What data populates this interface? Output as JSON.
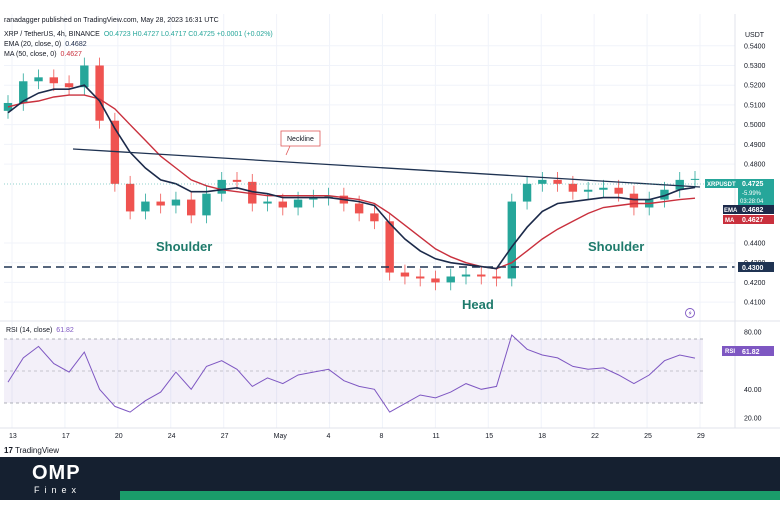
{
  "header": {
    "author": "ranadagger published on TradingView.com, May 28, 2023 16:31 UTC",
    "symbol_line": "XRP / TetherUS, 4h, BINANCE",
    "ohlc": "O0.4723 H0.4727 L0.4717 C0.4725 +0.0001 (+0.02%)",
    "ema_label": "EMA (20, close, 0)",
    "ema_value": "0.4682",
    "ma_label": "MA (50, close, 0)",
    "ma_value": "0.4627",
    "rsi_label": "RSI (14, close)",
    "rsi_value": "61.82"
  },
  "annotations": {
    "neckline": "Neckline",
    "shoulder_left": "Shoulder",
    "head": "Head",
    "shoulder_right": "Shoulder"
  },
  "price_axis": {
    "currency": "USDT",
    "ticks": [
      "0.5400",
      "0.5300",
      "0.5200",
      "0.5100",
      "0.5000",
      "0.4900",
      "0.4800",
      "0.4400",
      "0.4300",
      "0.4200",
      "0.4100"
    ],
    "badges": {
      "symbol": "XRPUSDT",
      "last_price": "0.4725",
      "change": "-5.99%",
      "countdown": "03:28:04",
      "ema_tag": "EMA",
      "ema_value": "0.4682",
      "ma_tag": "MA",
      "ma_value": "0.4627",
      "support_value": "0.4300"
    }
  },
  "rsi_axis": {
    "ticks": [
      "80.00",
      "40.00",
      "20.00"
    ],
    "badge_label": "RSI",
    "badge_value": "61.82"
  },
  "x_axis": {
    "ticks": [
      "13",
      "17",
      "20",
      "24",
      "27",
      "May",
      "4",
      "8",
      "11",
      "15",
      "18",
      "22",
      "25",
      "29"
    ]
  },
  "branding": {
    "tradingview": "TradingView",
    "logo_main": "OMP",
    "logo_sub": "Finex"
  },
  "colors": {
    "up": "#26a69a",
    "down": "#ef5350",
    "ema": "#1c2a4a",
    "ma": "#c9303d",
    "rsi": "#7e57c2",
    "neckline": "#1f3352",
    "support": "#1f3352"
  },
  "chart_data": [
    {
      "type": "line",
      "title": "XRP / TetherUS, 4h, BINANCE",
      "x": [
        "Apr 13",
        "Apr 14",
        "Apr 15",
        "Apr 16",
        "Apr 17",
        "Apr 18",
        "Apr 19",
        "Apr 20",
        "Apr 21",
        "Apr 22",
        "Apr 23",
        "Apr 24",
        "Apr 25",
        "Apr 26",
        "Apr 27",
        "Apr 28",
        "Apr 29",
        "Apr 30",
        "May 1",
        "May 2",
        "May 3",
        "May 4",
        "May 5",
        "May 6",
        "May 7",
        "May 8",
        "May 9",
        "May 10",
        "May 11",
        "May 12",
        "May 13",
        "May 14",
        "May 15",
        "May 16",
        "May 17",
        "May 18",
        "May 19",
        "May 20",
        "May 21",
        "May 22",
        "May 23",
        "May 24",
        "May 25",
        "May 26",
        "May 27",
        "May 28"
      ],
      "series": [
        {
          "name": "XRPUSDT",
          "values": [
            0.511,
            0.522,
            0.524,
            0.521,
            0.519,
            0.53,
            0.502,
            0.47,
            0.456,
            0.461,
            0.459,
            0.462,
            0.454,
            0.465,
            0.472,
            0.471,
            0.46,
            0.461,
            0.458,
            0.462,
            0.463,
            0.464,
            0.46,
            0.455,
            0.451,
            0.425,
            0.423,
            0.422,
            0.42,
            0.423,
            0.424,
            0.423,
            0.422,
            0.461,
            0.47,
            0.472,
            0.47,
            0.466,
            0.467,
            0.468,
            0.465,
            0.458,
            0.462,
            0.467,
            0.472,
            0.4725
          ]
        },
        {
          "name": "EMA",
          "values": [
            0.506,
            0.512,
            0.516,
            0.518,
            0.518,
            0.52,
            0.512,
            0.498,
            0.486,
            0.478,
            0.472,
            0.47,
            0.466,
            0.466,
            0.467,
            0.468,
            0.466,
            0.465,
            0.463,
            0.463,
            0.463,
            0.463,
            0.462,
            0.461,
            0.459,
            0.45,
            0.442,
            0.436,
            0.432,
            0.43,
            0.429,
            0.428,
            0.427,
            0.438,
            0.448,
            0.456,
            0.46,
            0.461,
            0.462,
            0.463,
            0.463,
            0.462,
            0.462,
            0.464,
            0.467,
            0.4682
          ]
        },
        {
          "name": "MA",
          "values": [
            0.509,
            0.511,
            0.512,
            0.514,
            0.515,
            0.515,
            0.513,
            0.508,
            0.5,
            0.492,
            0.484,
            0.478,
            0.472,
            0.469,
            0.467,
            0.466,
            0.465,
            0.464,
            0.464,
            0.464,
            0.464,
            0.464,
            0.463,
            0.462,
            0.46,
            0.455,
            0.449,
            0.443,
            0.437,
            0.433,
            0.43,
            0.428,
            0.427,
            0.43,
            0.436,
            0.442,
            0.447,
            0.451,
            0.455,
            0.458,
            0.459,
            0.46,
            0.46,
            0.461,
            0.462,
            0.4627
          ]
        }
      ],
      "annotation_levels": {
        "support": 0.43
      },
      "ylabel": "USDT",
      "ylim": [
        0.405,
        0.548
      ],
      "grid": true
    },
    {
      "type": "line",
      "title": "RSI (14, close)",
      "x": [
        "Apr 13",
        "Apr 14",
        "Apr 15",
        "Apr 16",
        "Apr 17",
        "Apr 18",
        "Apr 19",
        "Apr 20",
        "Apr 21",
        "Apr 22",
        "Apr 23",
        "Apr 24",
        "Apr 25",
        "Apr 26",
        "Apr 27",
        "Apr 28",
        "Apr 29",
        "Apr 30",
        "May 1",
        "May 2",
        "May 3",
        "May 4",
        "May 5",
        "May 6",
        "May 7",
        "May 8",
        "May 9",
        "May 10",
        "May 11",
        "May 12",
        "May 13",
        "May 14",
        "May 15",
        "May 16",
        "May 17",
        "May 18",
        "May 19",
        "May 20",
        "May 21",
        "May 22",
        "May 23",
        "May 24",
        "May 25",
        "May 26",
        "May 27",
        "May 28"
      ],
      "series": [
        {
          "name": "RSI",
          "values": [
            45,
            62,
            70,
            58,
            52,
            66,
            40,
            28,
            24,
            32,
            38,
            52,
            40,
            56,
            60,
            54,
            42,
            48,
            44,
            50,
            52,
            54,
            46,
            42,
            40,
            24,
            30,
            36,
            34,
            38,
            44,
            40,
            42,
            78,
            68,
            64,
            62,
            56,
            54,
            55,
            50,
            44,
            50,
            60,
            64,
            61.82
          ]
        }
      ],
      "bands": [
        30,
        70
      ],
      "ylim": [
        15,
        85
      ],
      "grid": true
    }
  ]
}
